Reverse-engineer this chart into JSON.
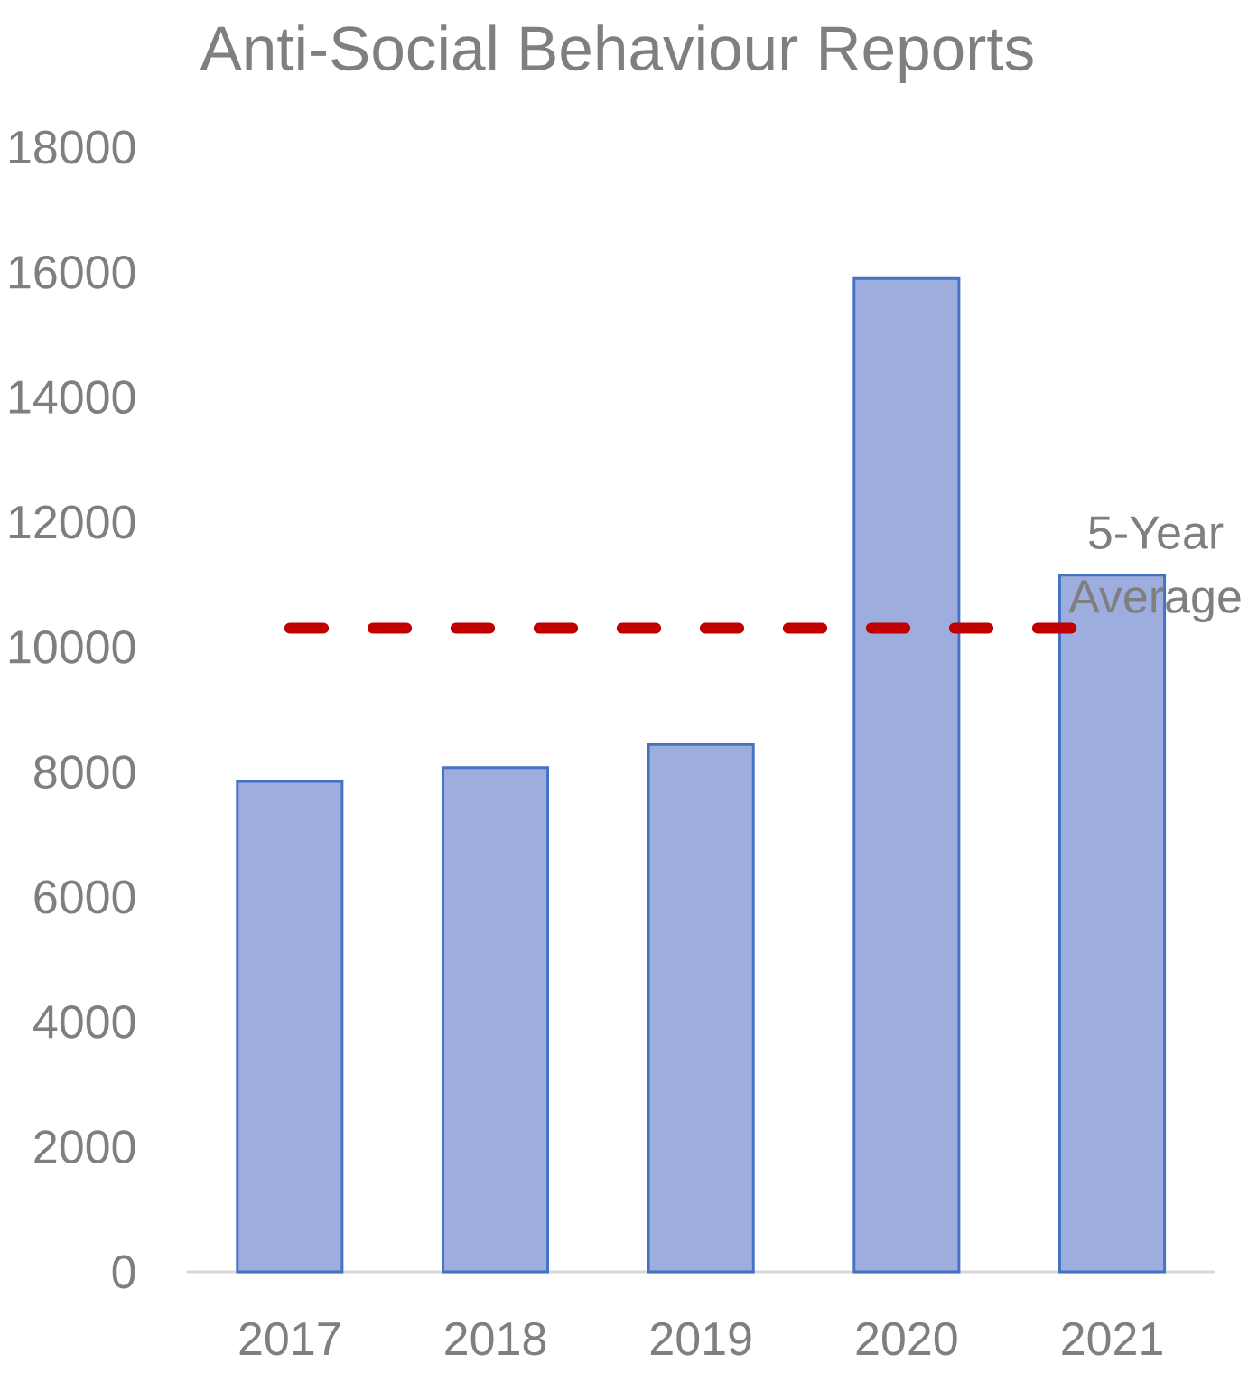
{
  "chart_data": {
    "type": "bar",
    "title": "Anti-Social Behaviour Reports",
    "categories": [
      "2017",
      "2018",
      "2019",
      "2020",
      "2021"
    ],
    "values": [
      7850,
      8070,
      8440,
      15900,
      11150
    ],
    "color": "#9dadde",
    "ylim": [
      0,
      18000
    ],
    "yticks": [
      0,
      2000,
      4000,
      6000,
      8000,
      10000,
      12000,
      14000,
      16000,
      18000
    ],
    "ref_lines": [
      {
        "axis": "y",
        "value": 10300,
        "label": "5-Year Average",
        "color": "#c00000",
        "line_style": "dashed"
      }
    ]
  }
}
